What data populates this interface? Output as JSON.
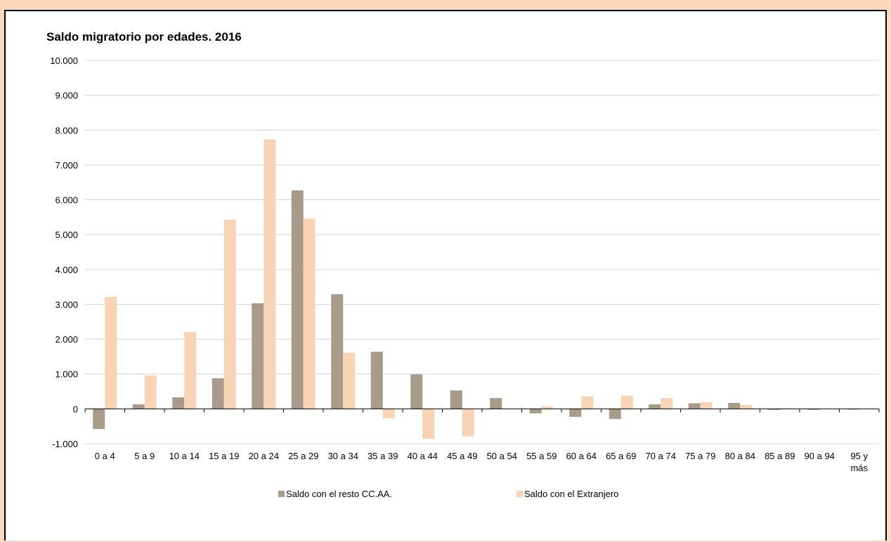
{
  "chart_data": {
    "type": "bar",
    "title": "Saldo migratorio por edades. 2016",
    "xlabel": "",
    "ylabel": "",
    "ylim": [
      -1000,
      10000
    ],
    "y_ticks": [
      "10.000",
      "9.000",
      "8.000",
      "7.000",
      "6.000",
      "5.000",
      "4.000",
      "3.000",
      "2.000",
      "1.000",
      "0",
      "-1.000"
    ],
    "y_tick_values": [
      10000,
      9000,
      8000,
      7000,
      6000,
      5000,
      4000,
      3000,
      2000,
      1000,
      0,
      -1000
    ],
    "grid": true,
    "legend_position": "bottom",
    "categories": [
      "0 a 4",
      "5 a 9",
      "10 a 14",
      "15 a 19",
      "20 a 24",
      "25 a 29",
      "30 a 34",
      "35 a 39",
      "40 a 44",
      "45 a 49",
      "50 a 54",
      "55 a 59",
      "60 a 64",
      "65 a 69",
      "70 a 74",
      "75 a 79",
      "80 a 84",
      "85 a 89",
      "90 a 94",
      "95 y más"
    ],
    "category_lines": [
      [
        "0 a 4"
      ],
      [
        "5 a 9"
      ],
      [
        "10 a 14"
      ],
      [
        "15 a 19"
      ],
      [
        "20 a 24"
      ],
      [
        "25 a 29"
      ],
      [
        "30 a 34"
      ],
      [
        "35 a 39"
      ],
      [
        "40 a 44"
      ],
      [
        "45 a 49"
      ],
      [
        "50 a 54"
      ],
      [
        "55 a 59"
      ],
      [
        "60 a 64"
      ],
      [
        "65 a 69"
      ],
      [
        "70 a 74"
      ],
      [
        "75 a 79"
      ],
      [
        "80 a 84"
      ],
      [
        "85 a 89"
      ],
      [
        "90 a 94"
      ],
      [
        "95 y",
        "más"
      ]
    ],
    "series": [
      {
        "name": "Saldo con el resto CC.AA.",
        "color": "#a89b8a",
        "values": [
          -580,
          130,
          330,
          880,
          3030,
          6270,
          3290,
          1640,
          990,
          530,
          310,
          -130,
          -230,
          -290,
          130,
          160,
          170,
          -30,
          -30,
          -20
        ]
      },
      {
        "name": "Saldo con el Extranjero",
        "color": "#f9d4b4",
        "values": [
          3210,
          960,
          2200,
          5430,
          7730,
          5460,
          1610,
          -270,
          -860,
          -790,
          0,
          70,
          360,
          380,
          310,
          190,
          110,
          20,
          0,
          0
        ]
      }
    ]
  }
}
